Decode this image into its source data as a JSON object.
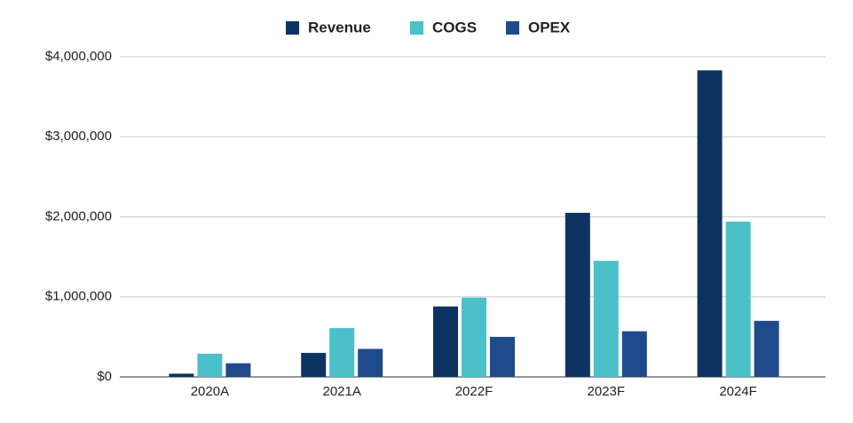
{
  "chart_data": {
    "type": "bar",
    "categories": [
      "2020A",
      "2021A",
      "2022F",
      "2023F",
      "2024F"
    ],
    "series": [
      {
        "name": "Revenue",
        "color": "#0d3461",
        "values": [
          40000,
          300000,
          880000,
          2050000,
          3830000
        ]
      },
      {
        "name": "COGS",
        "color": "#4bc0c8",
        "values": [
          290000,
          610000,
          990000,
          1450000,
          1940000
        ]
      },
      {
        "name": "OPEX",
        "color": "#1f4a8c",
        "values": [
          170000,
          350000,
          500000,
          570000,
          700000
        ]
      }
    ],
    "ylim": [
      0,
      4000000
    ],
    "yticks": [
      {
        "value": 0,
        "label": "$0"
      },
      {
        "value": 1000000,
        "label": "$1,000,000"
      },
      {
        "value": 2000000,
        "label": "$2,000,000"
      },
      {
        "value": 3000000,
        "label": "$3,000,000"
      },
      {
        "value": 4000000,
        "label": "$4,000,000"
      }
    ],
    "grid": true,
    "legend": "top"
  }
}
